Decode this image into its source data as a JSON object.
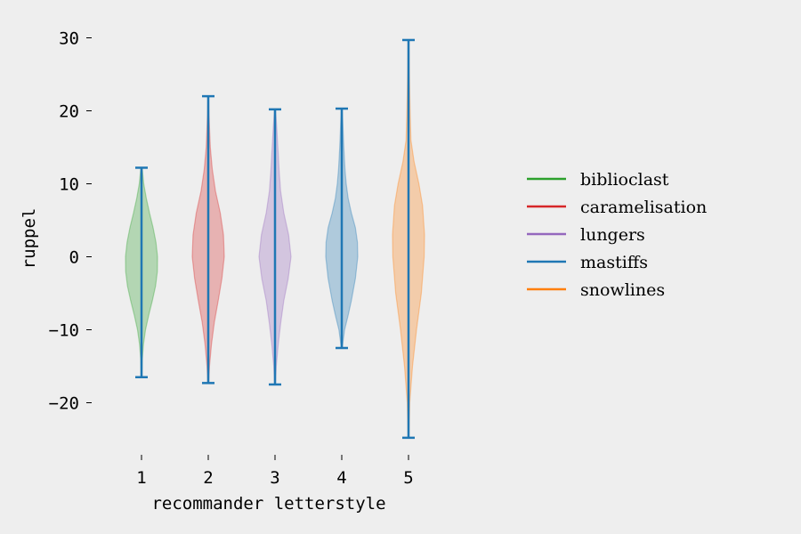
{
  "chart_data": {
    "type": "violin",
    "xlabel": "recommander letterstyle",
    "ylabel": "ruppel",
    "categories": [
      "1",
      "2",
      "3",
      "4",
      "5"
    ],
    "yticks": [
      30,
      20,
      10,
      0,
      -10,
      -20
    ],
    "ylim": [
      -27.5,
      31.5
    ],
    "grid": false,
    "legend_position": "right",
    "line_color": "#1f77b4",
    "series": [
      {
        "name": "biblioclast",
        "category": "1",
        "color": "#2ca02c",
        "min": -16.5,
        "max": 12.2,
        "profile": [
          [
            -16.5,
            0.02
          ],
          [
            -14,
            0.05
          ],
          [
            -12,
            0.12
          ],
          [
            -10,
            0.25
          ],
          [
            -8,
            0.45
          ],
          [
            -6,
            0.68
          ],
          [
            -4,
            0.88
          ],
          [
            -2,
            0.99
          ],
          [
            0,
            1.0
          ],
          [
            2,
            0.9
          ],
          [
            4,
            0.72
          ],
          [
            6,
            0.5
          ],
          [
            8,
            0.3
          ],
          [
            10,
            0.14
          ],
          [
            12.2,
            0.04
          ]
        ]
      },
      {
        "name": "caramelisation",
        "category": "2",
        "color": "#d62728",
        "min": -17.3,
        "max": 22.0,
        "profile": [
          [
            -17.3,
            0.02
          ],
          [
            -15,
            0.08
          ],
          [
            -12,
            0.2
          ],
          [
            -9,
            0.38
          ],
          [
            -6,
            0.62
          ],
          [
            -3,
            0.85
          ],
          [
            0,
            1.0
          ],
          [
            3,
            0.95
          ],
          [
            6,
            0.75
          ],
          [
            9,
            0.45
          ],
          [
            12,
            0.25
          ],
          [
            15,
            0.13
          ],
          [
            18,
            0.07
          ],
          [
            20,
            0.04
          ],
          [
            22,
            0.02
          ]
        ]
      },
      {
        "name": "lungers",
        "category": "3",
        "color": "#9467bd",
        "min": -17.5,
        "max": 20.2,
        "profile": [
          [
            -17.5,
            0.02
          ],
          [
            -15,
            0.08
          ],
          [
            -12,
            0.2
          ],
          [
            -9,
            0.36
          ],
          [
            -6,
            0.55
          ],
          [
            -3,
            0.82
          ],
          [
            0,
            1.0
          ],
          [
            3,
            0.85
          ],
          [
            6,
            0.55
          ],
          [
            9,
            0.35
          ],
          [
            12,
            0.25
          ],
          [
            15,
            0.18
          ],
          [
            18,
            0.1
          ],
          [
            20.2,
            0.03
          ]
        ]
      },
      {
        "name": "mastiffs",
        "category": "4",
        "color": "#1f77b4",
        "min": -12.5,
        "max": 20.3,
        "profile": [
          [
            -12.5,
            0.03
          ],
          [
            -10,
            0.18
          ],
          [
            -8,
            0.4
          ],
          [
            -6,
            0.6
          ],
          [
            -3,
            0.85
          ],
          [
            0,
            1.0
          ],
          [
            2,
            0.98
          ],
          [
            4,
            0.85
          ],
          [
            6,
            0.6
          ],
          [
            8,
            0.4
          ],
          [
            10,
            0.28
          ],
          [
            12,
            0.2
          ],
          [
            15,
            0.13
          ],
          [
            18,
            0.07
          ],
          [
            20.3,
            0.03
          ]
        ]
      },
      {
        "name": "snowlines",
        "category": "5",
        "color": "#ff7f0e",
        "min": -24.8,
        "max": 29.7,
        "profile": [
          [
            -24.8,
            0.02
          ],
          [
            -20,
            0.08
          ],
          [
            -15,
            0.25
          ],
          [
            -10,
            0.5
          ],
          [
            -5,
            0.8
          ],
          [
            0,
            0.98
          ],
          [
            3,
            1.0
          ],
          [
            7,
            0.88
          ],
          [
            10,
            0.65
          ],
          [
            13,
            0.35
          ],
          [
            16,
            0.15
          ],
          [
            20,
            0.1
          ],
          [
            24,
            0.06
          ],
          [
            27,
            0.04
          ],
          [
            29.7,
            0.02
          ]
        ]
      }
    ]
  }
}
